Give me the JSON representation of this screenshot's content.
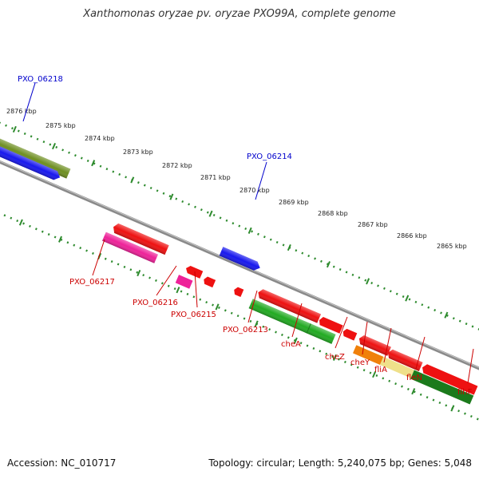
{
  "title": "Xanthomonas oryzae pv. oryzae PXO99A, complete genome",
  "footer": {
    "accession": "Accession: NC_010717",
    "summary": "Topology: circular; Length: 5,240,075 bp; Genes: 5,048"
  },
  "colors": {
    "backbone": "#7a7a7a",
    "ruler": "#2e8b2e",
    "label_top": "#0000cc",
    "label_bottom": "#cc0000",
    "red_gene": "#ee1111",
    "pink_gene": "#ee2299",
    "blue_gene": "#1111ee",
    "olive_gene": "#6f8f22",
    "green_gene": "#22aa22",
    "dark_green_gene": "#1b7a1b",
    "orange_gene": "#f0800a",
    "khaki_gene": "#efe08a"
  },
  "kbp_ticks": [
    "2876 kbp",
    "2875 kbp",
    "2874 kbp",
    "2873 kbp",
    "2872 kbp",
    "2871 kbp",
    "2870 kbp",
    "2869 kbp",
    "2868 kbp",
    "2867 kbp",
    "2866 kbp",
    "2865 kbp"
  ],
  "gene_labels": {
    "top": [
      "PXO_06218",
      "PXO_06214"
    ],
    "bottom": [
      "PXO_06217",
      "PXO_06216",
      "PXO_06215",
      "PXO_06213",
      "cheA",
      "cheZ",
      "cheY",
      "fliA",
      "fleN",
      "flhF"
    ]
  }
}
